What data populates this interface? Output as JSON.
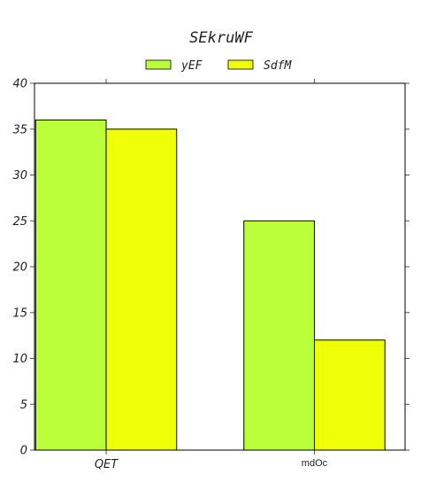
{
  "chart_data": {
    "type": "bar",
    "title": "SEkruWF",
    "categories": [
      "QET",
      "mdOc"
    ],
    "series": [
      {
        "name": "yEF",
        "values": [
          36,
          25
        ],
        "color": "#bbff3b"
      },
      {
        "name": "SdfM",
        "values": [
          35,
          12
        ],
        "color": "#eeff08"
      }
    ],
    "ylim": [
      0,
      40
    ],
    "yticks": [
      0,
      5,
      10,
      15,
      20,
      25,
      30,
      35,
      40
    ],
    "xlabel": "",
    "ylabel": "",
    "grid": false,
    "legend_position": "top-center"
  }
}
